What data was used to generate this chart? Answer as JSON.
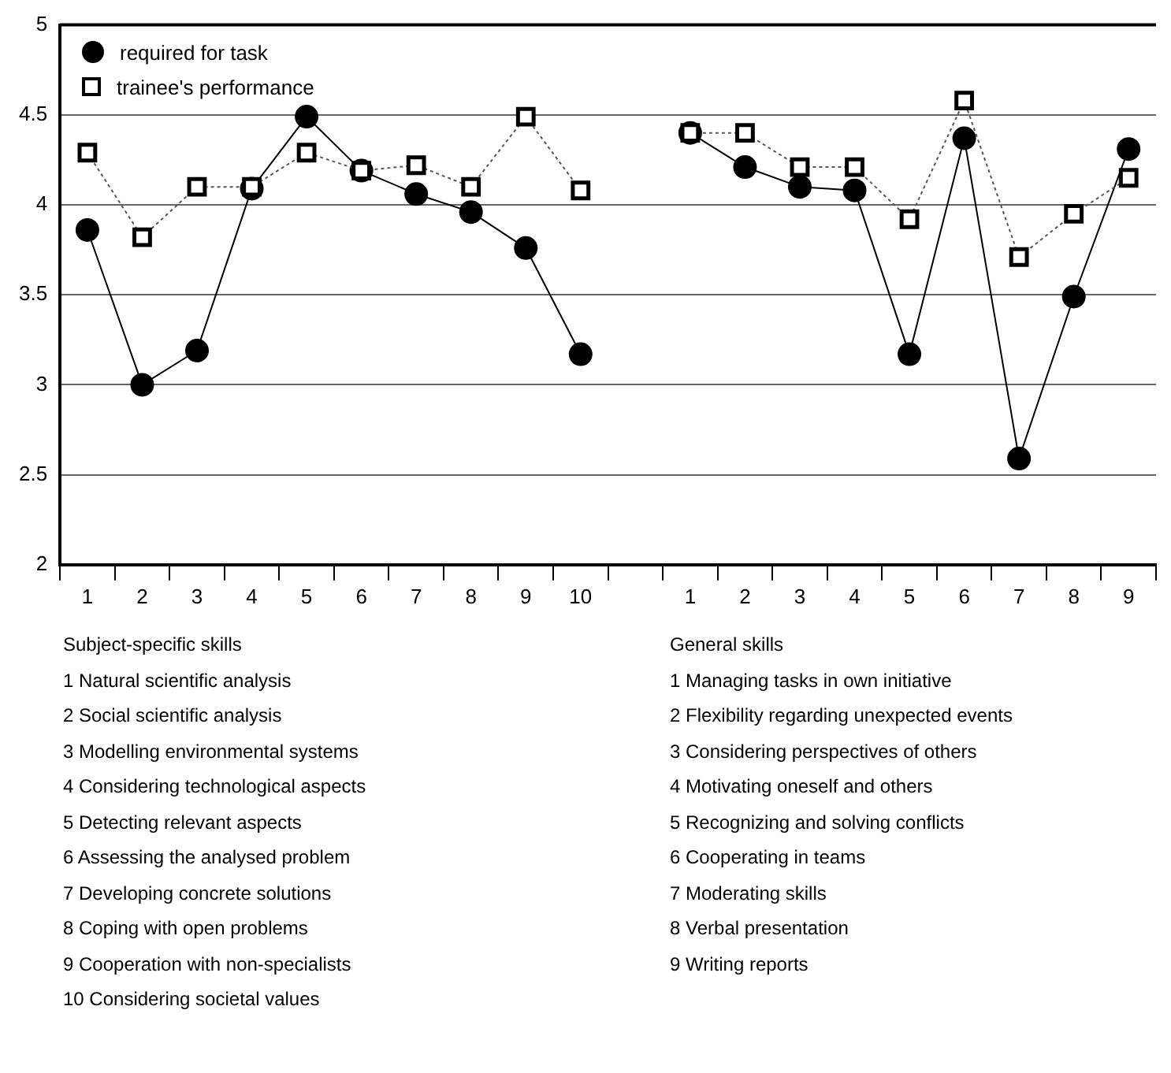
{
  "chart_data": {
    "type": "line",
    "categories": [
      "1",
      "2",
      "3",
      "4",
      "5",
      "6",
      "7",
      "8",
      "9",
      "10",
      null,
      "1",
      "2",
      "3",
      "4",
      "5",
      "6",
      "7",
      "8",
      "9"
    ],
    "series": [
      {
        "name": "required for task",
        "color": "#000000",
        "marker": "circle",
        "line_style": "solid",
        "values": [
          3.86,
          3.0,
          3.19,
          4.09,
          4.49,
          4.19,
          4.06,
          3.96,
          3.76,
          3.17,
          null,
          4.4,
          4.21,
          4.1,
          4.08,
          3.17,
          4.37,
          2.59,
          3.49,
          4.31
        ]
      },
      {
        "name": "trainee's performance",
        "color": "#555555",
        "marker": "square",
        "line_style": "dotted",
        "values": [
          4.29,
          3.82,
          4.1,
          4.1,
          4.29,
          4.19,
          4.22,
          4.1,
          4.49,
          4.08,
          null,
          4.4,
          4.4,
          4.21,
          4.21,
          3.92,
          4.58,
          3.71,
          3.95,
          4.15
        ]
      }
    ],
    "ylim": [
      2,
      5
    ],
    "yticks": [
      2,
      2.5,
      3,
      3.5,
      4,
      4.5,
      5
    ],
    "grid": "y",
    "legend": "top left",
    "annotations": [
      "Subject-specific skills\n1 Natural scientific analysis\n2 Social scientific analysis\n3 Modelling environmental systems\n4 Considering technological aspects\n5 Detecting relevant aspects\n6 Assessing the analysed problem\n7 Developing concrete solutions\n8 Coping with open problems\n9 Cooperation with non-specialists\n10 Considering societal values",
      "General skills\n1 Managing tasks in own initiative\n2 Flexibility regarding unexpected events\n3 Considering perspectives of others\n4 Motivating oneself and others\n5 Recognizing and solving conflicts\n6 Cooperating in teams\n7 Moderating skills\n8 Verbal presentation\n9 Writing reports"
    ]
  }
}
